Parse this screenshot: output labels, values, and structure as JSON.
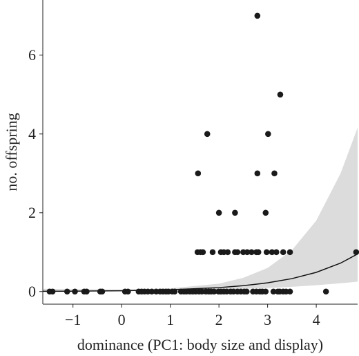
{
  "chart_data": {
    "type": "scatter",
    "x_label": "dominance (PC1: body size and display)",
    "y_label": "no. offspring",
    "xlim": [
      -1.62,
      4.85
    ],
    "ylim": [
      -0.32,
      7.4
    ],
    "xticks": [
      {
        "value": -1,
        "label": "−1"
      },
      0,
      1,
      2,
      3,
      4
    ],
    "yticks": [
      0,
      2,
      4,
      6
    ],
    "points": {
      "color": "#1a1a1a",
      "x": [
        -1.48,
        -1.42,
        -1.12,
        -0.96,
        -0.77,
        -0.72,
        -0.44,
        -0.4,
        0.07,
        0.13,
        0.35,
        0.41,
        0.47,
        0.54,
        0.62,
        0.71,
        0.79,
        0.85,
        0.91,
        0.96,
        1.04,
        1.09,
        1.22,
        1.28,
        1.33,
        1.4,
        1.46,
        1.52,
        1.59,
        1.65,
        1.73,
        1.79,
        1.84,
        1.9,
        1.99,
        2.04,
        2.1,
        2.16,
        2.24,
        2.3,
        2.38,
        2.45,
        2.52,
        2.57,
        2.7,
        2.77,
        2.84,
        2.89,
        2.96,
        3.12,
        3.21,
        3.25,
        3.32,
        3.38,
        3.46,
        4.2,
        1.56,
        1.62,
        1.67,
        1.87,
        2.04,
        2.1,
        2.18,
        2.33,
        2.38,
        2.5,
        2.58,
        2.67,
        2.77,
        2.81,
        2.98,
        3.09,
        3.18,
        3.32,
        3.46,
        4.82,
        2.0,
        2.33,
        2.96,
        1.57,
        2.79,
        3.14,
        1.76,
        3.01,
        3.26,
        2.79
      ],
      "y": [
        0,
        0,
        0,
        0,
        0,
        0,
        0,
        0,
        0,
        0,
        0,
        0,
        0,
        0,
        0,
        0,
        0,
        0,
        0,
        0,
        0,
        0,
        0,
        0,
        0,
        0,
        0,
        0,
        0,
        0,
        0,
        0,
        0,
        0,
        0,
        0,
        0,
        0,
        0,
        0,
        0,
        0,
        0,
        0,
        0,
        0,
        0,
        0,
        0,
        0,
        0,
        0,
        0,
        0,
        0,
        0,
        1,
        1,
        1,
        1,
        1,
        1,
        1,
        1,
        1,
        1,
        1,
        1,
        1,
        1,
        1,
        1,
        1,
        1,
        1,
        1,
        2,
        2,
        2,
        3,
        3,
        3,
        4,
        4,
        5,
        7
      ]
    },
    "fit": {
      "color": "#111111",
      "x": [
        -1.62,
        -1,
        0,
        1,
        2,
        2.5,
        3,
        3.5,
        4,
        4.5,
        4.85
      ],
      "y": [
        0.0057,
        0.0094,
        0.0207,
        0.0455,
        0.1,
        0.149,
        0.221,
        0.328,
        0.487,
        0.722,
        0.953
      ]
    },
    "band": {
      "color": "#dcdcdc",
      "upper": [
        0.07,
        0.06,
        0.05,
        0.08,
        0.2,
        0.35,
        0.6,
        1.05,
        1.8,
        3.0,
        4.16
      ],
      "lower": [
        0.001,
        0.002,
        0.008,
        0.025,
        0.05,
        0.07,
        0.09,
        0.12,
        0.16,
        0.21,
        0.25
      ]
    }
  }
}
